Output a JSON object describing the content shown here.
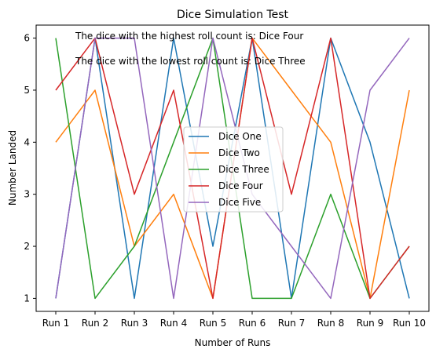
{
  "chart_data": {
    "type": "line",
    "title": "Dice Simulation Test",
    "xlabel": "Number of Runs",
    "ylabel": "Number Landed",
    "categories": [
      "Run 1",
      "Run 2",
      "Run 3",
      "Run 4",
      "Run 5",
      "Run 6",
      "Run 7",
      "Run 8",
      "Run 9",
      "Run 10"
    ],
    "ylim": [
      0.75,
      6.25
    ],
    "yticks": [
      1,
      2,
      3,
      4,
      5,
      6
    ],
    "grid": false,
    "legend_position": "center",
    "series": [
      {
        "name": "Dice One",
        "color": "#1f77b4",
        "values": [
          1,
          6,
          1,
          6,
          2,
          6,
          1,
          6,
          4,
          1
        ]
      },
      {
        "name": "Dice Two",
        "color": "#ff7f0e",
        "values": [
          4,
          5,
          2,
          3,
          1,
          6,
          5,
          4,
          1,
          5
        ]
      },
      {
        "name": "Dice Three",
        "color": "#2ca02c",
        "values": [
          6,
          1,
          2,
          4,
          6,
          1,
          1,
          3,
          1,
          2
        ]
      },
      {
        "name": "Dice Four",
        "color": "#d62728",
        "values": [
          5,
          6,
          3,
          5,
          1,
          6,
          3,
          6,
          1,
          2
        ]
      },
      {
        "name": "Dice Five",
        "color": "#9467bd",
        "values": [
          1,
          6,
          6,
          1,
          6,
          3,
          2,
          1,
          5,
          6
        ]
      }
    ],
    "annotations": [
      "The dice with the highest roll count is: Dice Four",
      "The dice with the lowest roll count is: Dice Three"
    ]
  }
}
